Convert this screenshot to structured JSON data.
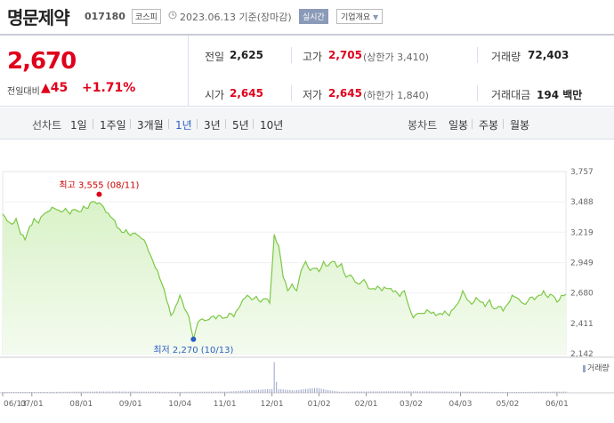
{
  "header": {
    "name": "명문제약",
    "code": "017180",
    "market": "코스피",
    "date": "2023.06.13 기준(장마감)",
    "realtime": "실시간",
    "company_info": "기업개요"
  },
  "summary": {
    "price": "2,670",
    "change_label": "전일대비",
    "change_value": "▲45",
    "change_pct": "+1.71%",
    "prev_close": {
      "label": "전일",
      "value": "2,625"
    },
    "open": {
      "label": "시가",
      "value": "2,645"
    },
    "high": {
      "label": "고가",
      "value": "2,705",
      "note": "(상한가 3,410)"
    },
    "low": {
      "label": "저가",
      "value": "2,645",
      "note": "(하한가 1,840)"
    },
    "volume": {
      "label": "거래량",
      "value": "72,403"
    },
    "amount": {
      "label": "거래대금",
      "value": "194",
      "unit": "백만"
    }
  },
  "tabs": {
    "line_label": "선차트",
    "line": [
      "1일",
      "1주일",
      "3개월",
      "1년",
      "3년",
      "5년",
      "10년"
    ],
    "active": "1년",
    "candle_label": "봉차트",
    "candle": [
      "일봉",
      "주봉",
      "월봉"
    ]
  },
  "chart_data": {
    "type": "area",
    "colors": {
      "line": "#7cc845",
      "fill": "#e6f6dc",
      "volume": "#9aa3c8",
      "high": "#e0001b",
      "low": "#2b5fc7"
    },
    "ylim": [
      2142,
      3757
    ],
    "yticks": [
      "3,757",
      "3,488",
      "3,219",
      "2,949",
      "2,680",
      "2,411",
      "2,142"
    ],
    "yticks_values": [
      3757,
      3488,
      3219,
      2949,
      2680,
      2411,
      2142
    ],
    "xticks": [
      "06/13",
      "07/01",
      "08/01",
      "09/01",
      "10/04",
      "11/01",
      "12/01",
      "01/02",
      "02/01",
      "03/02",
      "04/03",
      "05/02",
      "06/01"
    ],
    "xticks_index": [
      0,
      13,
      35,
      57,
      79,
      99,
      120,
      141,
      162,
      182,
      204,
      225,
      247
    ],
    "n_points": 252,
    "annotations": {
      "high": {
        "label": "최고 3,555 (08/11)",
        "index": 43,
        "value": 3555
      },
      "low": {
        "label": "최저 2,270 (10/13)",
        "index": 85,
        "value": 2270
      }
    },
    "volume_label": "거래량",
    "price_knots": [
      [
        0,
        3380
      ],
      [
        2,
        3320
      ],
      [
        4,
        3290
      ],
      [
        6,
        3340
      ],
      [
        8,
        3200
      ],
      [
        10,
        3150
      ],
      [
        12,
        3270
      ],
      [
        14,
        3340
      ],
      [
        16,
        3300
      ],
      [
        18,
        3370
      ],
      [
        20,
        3400
      ],
      [
        22,
        3440
      ],
      [
        24,
        3420
      ],
      [
        26,
        3400
      ],
      [
        28,
        3430
      ],
      [
        30,
        3380
      ],
      [
        32,
        3420
      ],
      [
        34,
        3400
      ],
      [
        36,
        3450
      ],
      [
        38,
        3430
      ],
      [
        40,
        3490
      ],
      [
        42,
        3470
      ],
      [
        43,
        3480
      ],
      [
        45,
        3440
      ],
      [
        47,
        3390
      ],
      [
        49,
        3340
      ],
      [
        51,
        3260
      ],
      [
        53,
        3220
      ],
      [
        55,
        3240
      ],
      [
        57,
        3190
      ],
      [
        59,
        3210
      ],
      [
        61,
        3180
      ],
      [
        63,
        3150
      ],
      [
        65,
        3050
      ],
      [
        67,
        2960
      ],
      [
        69,
        2880
      ],
      [
        71,
        2760
      ],
      [
        73,
        2620
      ],
      [
        75,
        2480
      ],
      [
        77,
        2560
      ],
      [
        79,
        2660
      ],
      [
        81,
        2540
      ],
      [
        83,
        2470
      ],
      [
        85,
        2270
      ],
      [
        87,
        2420
      ],
      [
        89,
        2450
      ],
      [
        91,
        2440
      ],
      [
        93,
        2470
      ],
      [
        95,
        2450
      ],
      [
        97,
        2480
      ],
      [
        99,
        2460
      ],
      [
        101,
        2500
      ],
      [
        103,
        2470
      ],
      [
        105,
        2540
      ],
      [
        107,
        2620
      ],
      [
        109,
        2660
      ],
      [
        111,
        2620
      ],
      [
        113,
        2650
      ],
      [
        115,
        2600
      ],
      [
        117,
        2630
      ],
      [
        119,
        2590
      ],
      [
        121,
        3200
      ],
      [
        123,
        3100
      ],
      [
        125,
        2820
      ],
      [
        127,
        2700
      ],
      [
        129,
        2760
      ],
      [
        131,
        2700
      ],
      [
        133,
        2880
      ],
      [
        135,
        2960
      ],
      [
        137,
        2880
      ],
      [
        139,
        2900
      ],
      [
        141,
        2870
      ],
      [
        143,
        2960
      ],
      [
        145,
        2920
      ],
      [
        147,
        2960
      ],
      [
        149,
        2910
      ],
      [
        151,
        2940
      ],
      [
        153,
        2820
      ],
      [
        155,
        2840
      ],
      [
        157,
        2780
      ],
      [
        159,
        2760
      ],
      [
        161,
        2800
      ],
      [
        163,
        2720
      ],
      [
        165,
        2720
      ],
      [
        167,
        2740
      ],
      [
        169,
        2700
      ],
      [
        171,
        2720
      ],
      [
        173,
        2720
      ],
      [
        175,
        2700
      ],
      [
        177,
        2650
      ],
      [
        179,
        2700
      ],
      [
        181,
        2560
      ],
      [
        183,
        2460
      ],
      [
        185,
        2500
      ],
      [
        187,
        2500
      ],
      [
        189,
        2530
      ],
      [
        191,
        2500
      ],
      [
        193,
        2480
      ],
      [
        195,
        2500
      ],
      [
        197,
        2520
      ],
      [
        199,
        2480
      ],
      [
        201,
        2540
      ],
      [
        203,
        2590
      ],
      [
        205,
        2700
      ],
      [
        207,
        2620
      ],
      [
        209,
        2580
      ],
      [
        211,
        2640
      ],
      [
        213,
        2600
      ],
      [
        215,
        2560
      ],
      [
        217,
        2620
      ],
      [
        219,
        2540
      ],
      [
        221,
        2560
      ],
      [
        223,
        2520
      ],
      [
        225,
        2580
      ],
      [
        227,
        2660
      ],
      [
        229,
        2640
      ],
      [
        231,
        2600
      ],
      [
        233,
        2580
      ],
      [
        235,
        2640
      ],
      [
        237,
        2620
      ],
      [
        239,
        2660
      ],
      [
        241,
        2700
      ],
      [
        243,
        2640
      ],
      [
        245,
        2660
      ],
      [
        247,
        2600
      ],
      [
        249,
        2660
      ],
      [
        251,
        2670
      ]
    ],
    "volume_knots": [
      [
        0,
        0.03
      ],
      [
        20,
        0.03
      ],
      [
        40,
        0.04
      ],
      [
        70,
        0.05
      ],
      [
        100,
        0.04
      ],
      [
        120,
        0.12
      ],
      [
        121,
        0.98
      ],
      [
        122,
        0.35
      ],
      [
        123,
        0.12
      ],
      [
        130,
        0.08
      ],
      [
        140,
        0.2
      ],
      [
        145,
        0.12
      ],
      [
        150,
        0.06
      ],
      [
        200,
        0.04
      ],
      [
        251,
        0.04
      ]
    ]
  }
}
